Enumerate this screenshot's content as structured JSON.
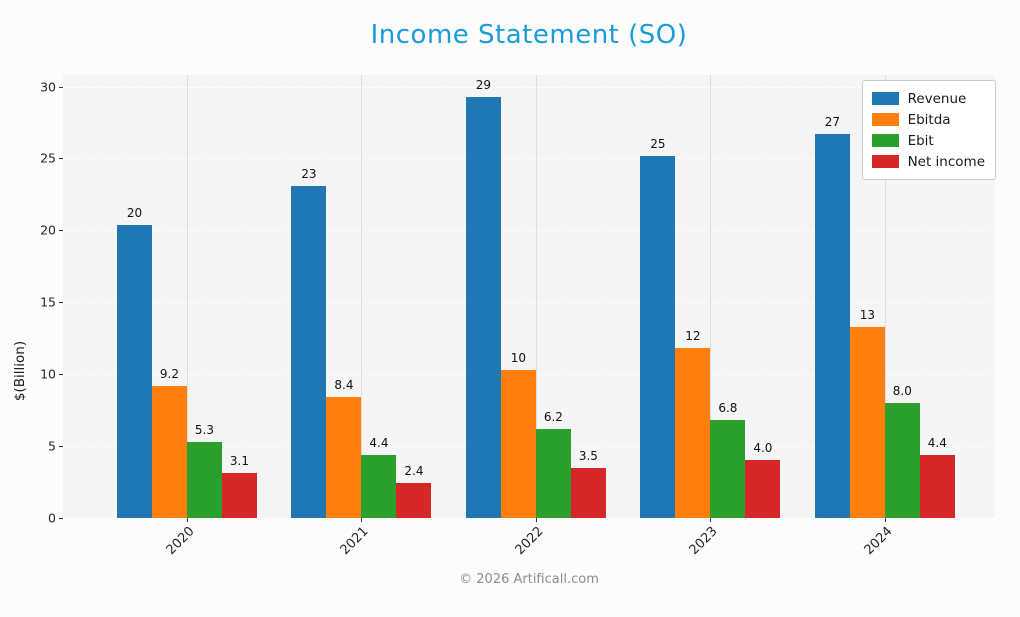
{
  "title": "Income Statement (SO)",
  "footer": "© 2026 Artificall.com",
  "colors": {
    "title": "#1a9dd6",
    "footer": "#8c8c8c",
    "plot_background": "#f5f5f6",
    "revenue": "#1f77b4",
    "ebitda": "#ff7f0e",
    "ebit": "#2ca02c",
    "net_income": "#d62728"
  },
  "chart_data": {
    "type": "bar",
    "title": "Income Statement (SO)",
    "xlabel": "",
    "ylabel": "$(Billion)",
    "categories": [
      "2020",
      "2021",
      "2022",
      "2023",
      "2024"
    ],
    "series": [
      {
        "name": "Revenue",
        "color": "#1f77b4",
        "values": [
          20.4,
          23.1,
          29.3,
          25.2,
          26.7
        ],
        "labels": [
          "20",
          "23",
          "29",
          "25",
          "27"
        ]
      },
      {
        "name": "Ebitda",
        "color": "#ff7f0e",
        "values": [
          9.2,
          8.4,
          10.3,
          11.8,
          13.3
        ],
        "labels": [
          "9.2",
          "8.4",
          "10",
          "12",
          "13"
        ]
      },
      {
        "name": "Ebit",
        "color": "#2ca02c",
        "values": [
          5.3,
          4.4,
          6.2,
          6.8,
          8.0
        ],
        "labels": [
          "5.3",
          "4.4",
          "6.2",
          "6.8",
          "8.0"
        ]
      },
      {
        "name": "Net income",
        "color": "#d62728",
        "values": [
          3.1,
          2.4,
          3.5,
          4.0,
          4.4
        ],
        "labels": [
          "3.1",
          "2.4",
          "3.5",
          "4.0",
          "4.4"
        ]
      }
    ],
    "ylim": [
      0,
      30.8
    ],
    "yticks": [
      0,
      5,
      10,
      15,
      20,
      25,
      30
    ],
    "grid": true,
    "grid_style": "horizontal dashed, vertical solid at category centers",
    "legend_position": "upper right",
    "xtick_rotation": 45
  }
}
